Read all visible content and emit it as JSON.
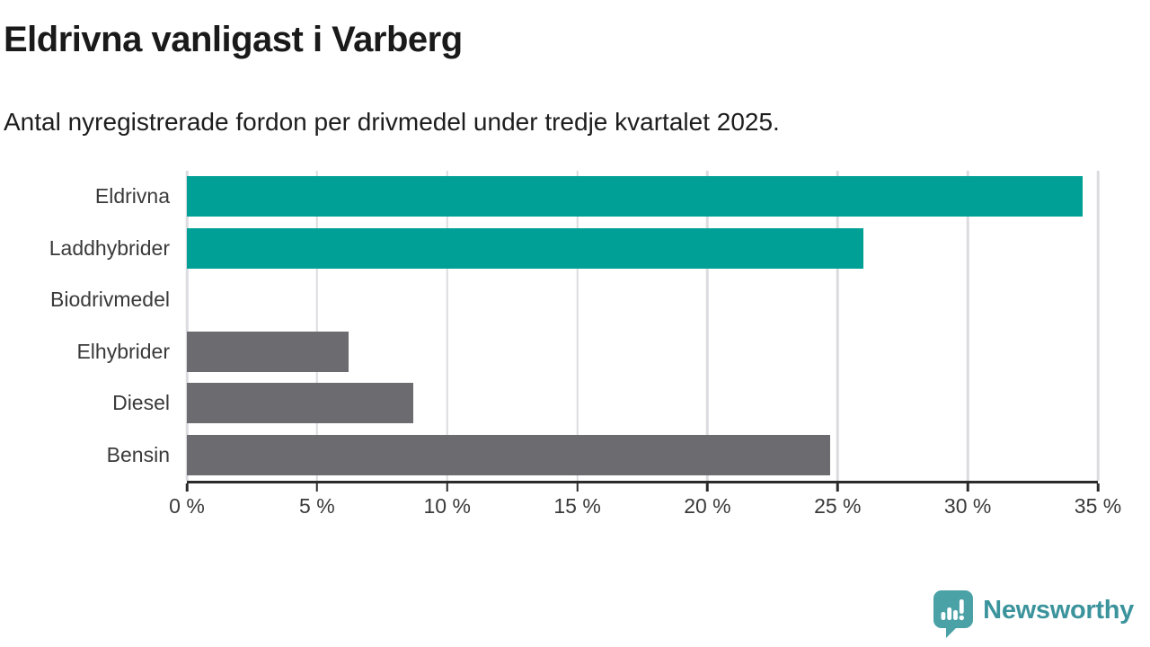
{
  "title": "Eldrivna vanligast i Varberg",
  "subtitle": "Antal nyregistrerade fordon per drivmedel under tredje kvartalet 2025.",
  "chart_data": {
    "type": "bar",
    "orientation": "horizontal",
    "title": "Eldrivna vanligast i Varberg",
    "subtitle": "Antal nyregistrerade fordon per drivmedel under tredje kvartalet 2025.",
    "categories": [
      "Eldrivna",
      "Laddhybrider",
      "Biodrivmedel",
      "Elhybrider",
      "Diesel",
      "Bensin"
    ],
    "values": [
      34.4,
      26.0,
      0,
      6.2,
      8.7,
      24.7
    ],
    "unit": "%",
    "xlim": [
      0,
      35
    ],
    "x_tick_values": [
      0,
      5,
      10,
      15,
      20,
      25,
      30,
      35
    ],
    "x_tick_labels": [
      "0 %",
      "5 %",
      "10 %",
      "15 %",
      "20 %",
      "25 %",
      "30 %",
      "35 %"
    ],
    "grid": true,
    "legend": "none",
    "colors": {
      "highlight": "#00a096",
      "default": "#6b6b70",
      "gridline": "#dcdce0",
      "axis": "#2b2b2b"
    },
    "bar_colors": [
      "#00a096",
      "#00a096",
      "#6b6b70",
      "#6b6b70",
      "#6b6b70",
      "#6b6b70"
    ]
  },
  "branding": {
    "logo_text": "Newsworthy",
    "logo_text_color": "#3b939c",
    "logo_icon_color": "#4aa1a6",
    "logo_icon": "newsworthy-speech-bubble-chart-icon"
  }
}
